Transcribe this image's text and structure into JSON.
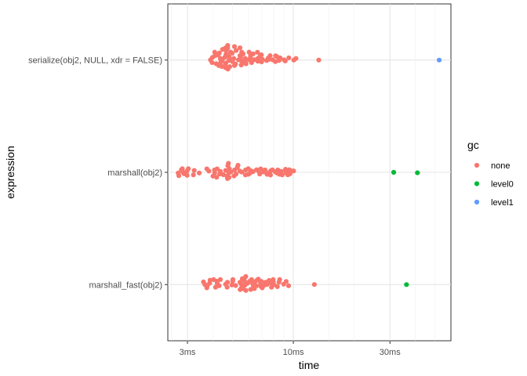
{
  "chart_data": {
    "type": "scatter",
    "title": "",
    "xlabel": "time",
    "ylabel": "expression",
    "x_scale": "log10",
    "xlim_ms": [
      2.4,
      60
    ],
    "x_ticks": [
      {
        "value": 3,
        "label": "3ms"
      },
      {
        "value": 10,
        "label": "10ms"
      },
      {
        "value": 30,
        "label": "30ms"
      }
    ],
    "categories": [
      "serialize(obj2, NULL, xdr = FALSE)",
      "marshall(obj2)",
      "marshall_fast(obj2)"
    ],
    "legend": {
      "title": "gc",
      "position": "right",
      "entries": [
        {
          "name": "none",
          "color": "#F8766D"
        },
        {
          "name": "level0",
          "color": "#00BA38"
        },
        {
          "name": "level1",
          "color": "#619CFF"
        }
      ]
    },
    "grid": true,
    "series": [
      {
        "expression": "serialize(obj2, NULL, xdr = FALSE)",
        "gc": "none",
        "points": [
          [
            4.74,
            0.13
          ],
          [
            4.74,
            0.108
          ],
          [
            4.62,
            0.108
          ],
          [
            5.12,
            0.12
          ],
          [
            5.45,
            0.109
          ],
          [
            4.47,
            0.095
          ],
          [
            4.65,
            0.087
          ],
          [
            5.22,
            0.085
          ],
          [
            4.09,
            0.07
          ],
          [
            4.89,
            0.071
          ],
          [
            5.56,
            0.07
          ],
          [
            6.05,
            0.07
          ],
          [
            6.65,
            0.069
          ],
          [
            4.31,
            0.063
          ],
          [
            4.99,
            0.061
          ],
          [
            5.65,
            0.055
          ],
          [
            6.33,
            0.055
          ],
          [
            4.65,
            0.052
          ],
          [
            4.25,
            0.046
          ],
          [
            6.95,
            0.047
          ],
          [
            4.11,
            0.039
          ],
          [
            4.73,
            0.039
          ],
          [
            5.45,
            0.039
          ],
          [
            6.15,
            0.038
          ],
          [
            6.84,
            0.032
          ],
          [
            7.68,
            0.039
          ],
          [
            8.17,
            0.038
          ],
          [
            4.82,
            0.029
          ],
          [
            5.49,
            0.029
          ],
          [
            8.33,
            0.028
          ],
          [
            3.99,
            0.024
          ],
          [
            4.58,
            0.023
          ],
          [
            6.14,
            0.021
          ],
          [
            7.52,
            0.018
          ],
          [
            8.6,
            0.02
          ],
          [
            9.5,
            0.02
          ],
          [
            4.36,
            0.014
          ],
          [
            5.08,
            0.014
          ],
          [
            5.78,
            0.014
          ],
          [
            6.68,
            0.014
          ],
          [
            10.3,
            0.014
          ],
          [
            4.85,
            0.009
          ],
          [
            6.05,
            0.005
          ],
          [
            7.02,
            0.008
          ],
          [
            7.6,
            0.006
          ],
          [
            3.9,
            0.002
          ],
          [
            5.36,
            0.002
          ],
          [
            6.42,
            0.003
          ],
          [
            7.92,
            0.002
          ],
          [
            9.0,
            0.002
          ],
          [
            10.05,
            0.0
          ],
          [
            13.35,
            0.0
          ],
          [
            4.8,
            -0.004
          ],
          [
            6.13,
            -0.003
          ],
          [
            7.38,
            -0.004
          ],
          [
            8.5,
            -0.004
          ],
          [
            4.45,
            -0.009
          ],
          [
            5.55,
            -0.008
          ],
          [
            6.68,
            -0.011
          ],
          [
            9.12,
            -0.008
          ],
          [
            5.0,
            -0.014
          ],
          [
            5.8,
            -0.014
          ],
          [
            8.15,
            -0.014
          ],
          [
            3.97,
            -0.023
          ],
          [
            4.38,
            -0.018
          ],
          [
            6.97,
            -0.016
          ],
          [
            4.64,
            -0.027
          ],
          [
            5.61,
            -0.023
          ],
          [
            6.22,
            -0.023
          ],
          [
            4.16,
            -0.033
          ],
          [
            5.18,
            -0.035
          ],
          [
            5.84,
            -0.033
          ],
          [
            4.61,
            -0.043
          ],
          [
            5.53,
            -0.044
          ],
          [
            4.29,
            -0.05
          ],
          [
            5.12,
            -0.049
          ],
          [
            4.44,
            -0.058
          ],
          [
            4.85,
            -0.059
          ],
          [
            4.63,
            -0.068
          ],
          [
            4.75,
            -0.08
          ]
        ]
      },
      {
        "expression": "serialize(obj2, NULL, xdr = FALSE)",
        "gc": "level1",
        "points": [
          [
            52.5,
            0.0
          ]
        ]
      },
      {
        "expression": "marshall(obj2)",
        "gc": "none",
        "points": [
          [
            4.78,
            0.08
          ],
          [
            4.75,
            0.06
          ],
          [
            5.33,
            0.063
          ],
          [
            5.29,
            0.043
          ],
          [
            2.83,
            0.032
          ],
          [
            3.03,
            0.032
          ],
          [
            3.74,
            0.031
          ],
          [
            4.2,
            0.031
          ],
          [
            4.83,
            0.032
          ],
          [
            5.99,
            0.032
          ],
          [
            6.9,
            0.031
          ],
          [
            2.8,
            0.023
          ],
          [
            3.24,
            0.017
          ],
          [
            4.63,
            0.017
          ],
          [
            4.08,
            0.021
          ],
          [
            5.13,
            0.021
          ],
          [
            5.81,
            0.021
          ],
          [
            6.58,
            0.023
          ],
          [
            7.25,
            0.021
          ],
          [
            7.88,
            0.022
          ],
          [
            8.38,
            0.021
          ],
          [
            9.15,
            0.027
          ],
          [
            9.55,
            0.023
          ],
          [
            2.98,
            0.01
          ],
          [
            3.83,
            0.011
          ],
          [
            4.36,
            0.009
          ],
          [
            5.45,
            0.011
          ],
          [
            6.19,
            0.013
          ],
          [
            6.74,
            0.011
          ],
          [
            7.72,
            0.013
          ],
          [
            8.72,
            0.009
          ],
          [
            9.77,
            0.012
          ],
          [
            10.03,
            0.012
          ],
          [
            2.85,
            0.0
          ],
          [
            4.92,
            0.004
          ],
          [
            5.56,
            0.002
          ],
          [
            6.32,
            0.006
          ],
          [
            7.12,
            0.003
          ],
          [
            8.13,
            0.005
          ],
          [
            9.2,
            0.003
          ],
          [
            2.7,
            -0.006
          ],
          [
            3.43,
            -0.006
          ],
          [
            4.09,
            -0.005
          ],
          [
            4.81,
            -0.004
          ],
          [
            6.11,
            -0.007
          ],
          [
            7.57,
            -0.004
          ],
          [
            8.29,
            -0.006
          ],
          [
            9.26,
            -0.008
          ],
          [
            2.89,
            -0.013
          ],
          [
            4.33,
            -0.015
          ],
          [
            5.21,
            -0.015
          ],
          [
            5.99,
            -0.017
          ],
          [
            6.82,
            -0.015
          ],
          [
            7.42,
            -0.018
          ],
          [
            8.53,
            -0.017
          ],
          [
            9.63,
            -0.013
          ],
          [
            3.21,
            -0.023
          ],
          [
            4.51,
            -0.021
          ],
          [
            5.8,
            -0.023
          ],
          [
            7.71,
            -0.024
          ],
          [
            8.81,
            -0.023
          ],
          [
            9.39,
            -0.022
          ],
          [
            2.72,
            -0.03
          ],
          [
            2.99,
            -0.027
          ],
          [
            4.01,
            -0.034
          ],
          [
            4.7,
            -0.032
          ],
          [
            5.09,
            -0.032
          ],
          [
            4.18,
            -0.044
          ],
          [
            4.81,
            -0.045
          ],
          [
            4.73,
            -0.055
          ]
        ]
      },
      {
        "expression": "marshall(obj2)",
        "gc": "level0",
        "points": [
          [
            31.3,
            0.0
          ],
          [
            41.0,
            -0.004
          ]
        ]
      },
      {
        "expression": "marshall_fast(obj2)",
        "gc": "none",
        "points": [
          [
            5.82,
            0.072
          ],
          [
            5.6,
            0.053
          ],
          [
            6.71,
            0.049
          ],
          [
            4.04,
            0.045
          ],
          [
            4.36,
            0.045
          ],
          [
            5.03,
            0.045
          ],
          [
            6.22,
            0.045
          ],
          [
            7.95,
            0.045
          ],
          [
            8.56,
            0.045
          ],
          [
            3.88,
            0.039
          ],
          [
            5.73,
            0.037
          ],
          [
            6.59,
            0.037
          ],
          [
            7.59,
            0.037
          ],
          [
            4.19,
            0.03
          ],
          [
            5.02,
            0.03
          ],
          [
            6.07,
            0.029
          ],
          [
            6.95,
            0.029
          ],
          [
            7.96,
            0.028
          ],
          [
            9.22,
            0.028
          ],
          [
            3.6,
            0.024
          ],
          [
            4.73,
            0.021
          ],
          [
            5.45,
            0.021
          ],
          [
            6.43,
            0.021
          ],
          [
            7.29,
            0.021
          ],
          [
            8.49,
            0.021
          ],
          [
            3.86,
            0.012
          ],
          [
            4.21,
            0.012
          ],
          [
            5.94,
            0.012
          ],
          [
            6.89,
            0.012
          ],
          [
            7.77,
            0.013
          ],
          [
            4.63,
            0.004
          ],
          [
            5.54,
            0.004
          ],
          [
            6.31,
            0.003
          ],
          [
            8.96,
            0.004
          ],
          [
            3.66,
            0.0
          ],
          [
            4.97,
            -0.003
          ],
          [
            7.41,
            0.0
          ],
          [
            8.02,
            -0.001
          ],
          [
            12.7,
            0.001
          ],
          [
            5.77,
            -0.004
          ],
          [
            4.3,
            -0.01
          ],
          [
            5.19,
            -0.008
          ],
          [
            6.57,
            -0.011
          ],
          [
            7.14,
            -0.009
          ],
          [
            9.47,
            -0.01
          ],
          [
            3.75,
            -0.015
          ],
          [
            5.67,
            -0.016
          ],
          [
            6.92,
            -0.016
          ],
          [
            8.34,
            -0.018
          ],
          [
            4.13,
            -0.023
          ],
          [
            4.71,
            -0.023
          ],
          [
            6.35,
            -0.023
          ],
          [
            7.8,
            -0.023
          ],
          [
            3.74,
            -0.029
          ],
          [
            5.55,
            -0.029
          ],
          [
            7.02,
            -0.029
          ],
          [
            5.61,
            -0.036
          ],
          [
            6.42,
            -0.036
          ],
          [
            5.46,
            -0.044
          ],
          [
            6.16,
            -0.043
          ],
          [
            5.83,
            -0.052
          ]
        ]
      },
      {
        "expression": "marshall_fast(obj2)",
        "gc": "level0",
        "points": [
          [
            36.2,
            0.0
          ]
        ]
      }
    ]
  }
}
